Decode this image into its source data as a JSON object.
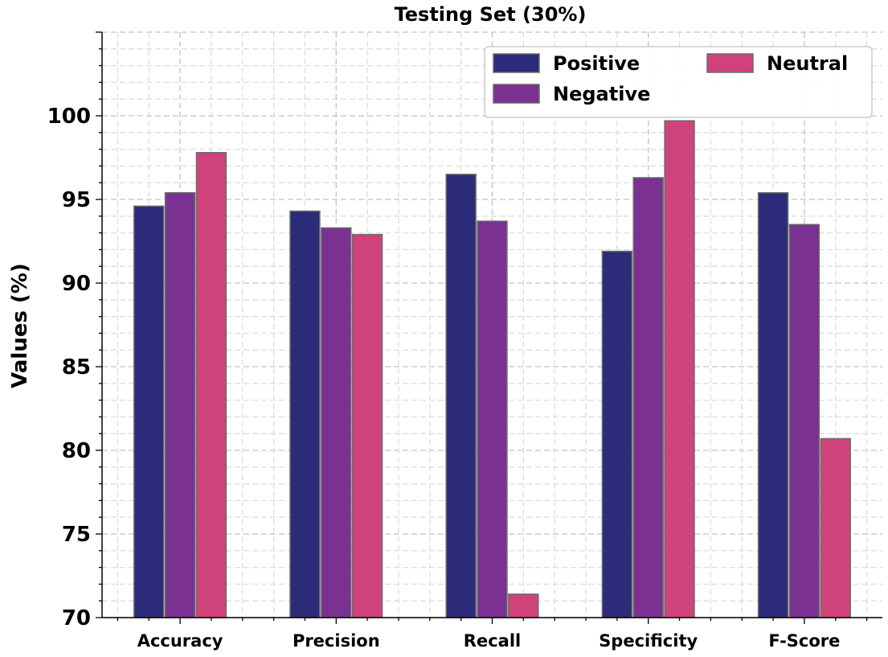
{
  "chart_data": {
    "type": "bar",
    "title": "Testing Set (30%)",
    "xlabel": "",
    "ylabel": "Values (%)",
    "categories": [
      "Accuracy",
      "Precision",
      "Recall",
      "Specificity",
      "F-Score"
    ],
    "series": [
      {
        "name": "Positive",
        "color": "#2b2b7a",
        "values": [
          94.6,
          94.3,
          96.5,
          91.9,
          95.4
        ]
      },
      {
        "name": "Negative",
        "color": "#7b3191",
        "values": [
          95.4,
          93.3,
          93.7,
          96.3,
          93.5
        ]
      },
      {
        "name": "Neutral",
        "color": "#d0437a",
        "values": [
          97.8,
          92.9,
          71.4,
          99.7,
          80.7
        ]
      }
    ],
    "ylim": [
      70,
      105
    ],
    "yticks": [
      "70",
      "75",
      "80",
      "85",
      "90",
      "95",
      "100"
    ],
    "grid": true,
    "legend_position": "top-right"
  }
}
